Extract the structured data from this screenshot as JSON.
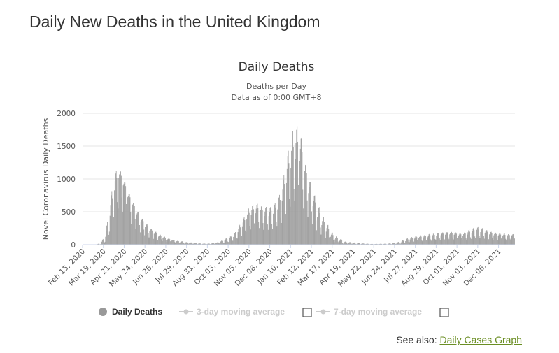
{
  "page": {
    "title": "Daily New Deaths in the United Kingdom",
    "see_also_prefix": "See also:",
    "see_also_link": "Daily Cases Graph",
    "link_color": "#6a8e23"
  },
  "chart_data": {
    "type": "bar",
    "title": "Daily Deaths",
    "subtitle_lines": [
      "Deaths per Day",
      "Data as of 0:00 GMT+8"
    ],
    "ylabel": "Novel Coronavirus Daily Deaths",
    "xlabel": "",
    "ylim": [
      0,
      2000
    ],
    "yticks": [
      0,
      500,
      1000,
      1500,
      2000
    ],
    "grid": true,
    "bar_color": "#999999",
    "x_start": "2020-02-15",
    "x_end": "2021-12-31",
    "x_tick_labels": [
      "Feb 15, 2020",
      "Mar 19, 2020",
      "Apr 21, 2020",
      "May 24, 2020",
      "Jun 26, 2020",
      "Jul 29, 2020",
      "Aug 31, 2020",
      "Oct 03, 2020",
      "Nov 05, 2020",
      "Dec 08, 2020",
      "Jan 10, 2021",
      "Feb 12, 2021",
      "Mar 17, 2021",
      "Apr 19, 2021",
      "May 22, 2021",
      "Jun 24, 2021",
      "Jul 27, 2021",
      "Aug 29, 2021",
      "Oct 01, 2021",
      "Nov 03, 2021",
      "Dec 06, 2021"
    ],
    "weekly_series": {
      "name": "Daily Deaths",
      "week_start": [
        "2020-02-15",
        "2020-02-22",
        "2020-02-29",
        "2020-03-07",
        "2020-03-14",
        "2020-03-21",
        "2020-03-28",
        "2020-04-04",
        "2020-04-11",
        "2020-04-18",
        "2020-04-25",
        "2020-05-02",
        "2020-05-09",
        "2020-05-16",
        "2020-05-23",
        "2020-05-30",
        "2020-06-06",
        "2020-06-13",
        "2020-06-20",
        "2020-06-27",
        "2020-07-04",
        "2020-07-11",
        "2020-07-18",
        "2020-07-25",
        "2020-08-01",
        "2020-08-08",
        "2020-08-15",
        "2020-08-22",
        "2020-08-29",
        "2020-09-05",
        "2020-09-12",
        "2020-09-19",
        "2020-09-26",
        "2020-10-03",
        "2020-10-10",
        "2020-10-17",
        "2020-10-24",
        "2020-10-31",
        "2020-11-07",
        "2020-11-14",
        "2020-11-21",
        "2020-11-28",
        "2020-12-05",
        "2020-12-12",
        "2020-12-19",
        "2020-12-26",
        "2021-01-02",
        "2021-01-09",
        "2021-01-16",
        "2021-01-23",
        "2021-01-30",
        "2021-02-06",
        "2021-02-13",
        "2021-02-20",
        "2021-02-27",
        "2021-03-06",
        "2021-03-13",
        "2021-03-20",
        "2021-03-27",
        "2021-04-03",
        "2021-04-10",
        "2021-04-17",
        "2021-04-24",
        "2021-05-01",
        "2021-05-08",
        "2021-05-15",
        "2021-05-22",
        "2021-05-29",
        "2021-06-05",
        "2021-06-12",
        "2021-06-19",
        "2021-06-26",
        "2021-07-03",
        "2021-07-10",
        "2021-07-17",
        "2021-07-24",
        "2021-07-31",
        "2021-08-07",
        "2021-08-14",
        "2021-08-21",
        "2021-08-28",
        "2021-09-04",
        "2021-09-11",
        "2021-09-18",
        "2021-09-25",
        "2021-10-02",
        "2021-10-09",
        "2021-10-16",
        "2021-10-23",
        "2021-10-30",
        "2021-11-06",
        "2021-11-13",
        "2021-11-20",
        "2021-11-27",
        "2021-12-04",
        "2021-12-11",
        "2021-12-18",
        "2021-12-25"
      ],
      "avg": [
        0,
        0,
        0,
        2,
        15,
        80,
        360,
        760,
        1000,
        900,
        720,
        570,
        440,
        340,
        260,
        200,
        160,
        120,
        95,
        75,
        60,
        45,
        40,
        30,
        25,
        20,
        15,
        12,
        10,
        15,
        20,
        35,
        55,
        75,
        105,
        170,
        240,
        350,
        420,
        450,
        460,
        410,
        410,
        440,
        500,
        600,
        850,
        1050,
        1220,
        1200,
        1000,
        760,
        560,
        400,
        280,
        180,
        110,
        70,
        50,
        30,
        25,
        20,
        15,
        12,
        10,
        8,
        8,
        8,
        8,
        10,
        15,
        20,
        30,
        45,
        70,
        85,
        90,
        95,
        105,
        110,
        120,
        135,
        145,
        150,
        145,
        130,
        125,
        140,
        160,
        175,
        180,
        165,
        150,
        135,
        130,
        120,
        115,
        125
      ],
      "peak": [
        0,
        0,
        1,
        5,
        40,
        200,
        700,
        1100,
        1160,
        1000,
        800,
        680,
        530,
        420,
        330,
        250,
        210,
        160,
        130,
        100,
        80,
        60,
        55,
        40,
        35,
        30,
        20,
        18,
        15,
        22,
        30,
        55,
        90,
        120,
        160,
        270,
        380,
        530,
        600,
        630,
        600,
        580,
        560,
        610,
        680,
        950,
        1320,
        1700,
        1820,
        1760,
        1300,
        1020,
        800,
        620,
        450,
        340,
        200,
        140,
        100,
        50,
        40,
        35,
        28,
        20,
        16,
        12,
        12,
        14,
        15,
        18,
        24,
        35,
        60,
        90,
        110,
        130,
        140,
        145,
        160,
        170,
        175,
        185,
        190,
        195,
        190,
        175,
        180,
        220,
        250,
        270,
        260,
        230,
        200,
        185,
        175,
        170,
        165,
        160
      ]
    },
    "legend": [
      {
        "label": "Daily Deaths",
        "active": true
      },
      {
        "label": "3-day moving average",
        "active": false
      },
      {
        "label": "7-day moving average",
        "active": false
      }
    ]
  }
}
